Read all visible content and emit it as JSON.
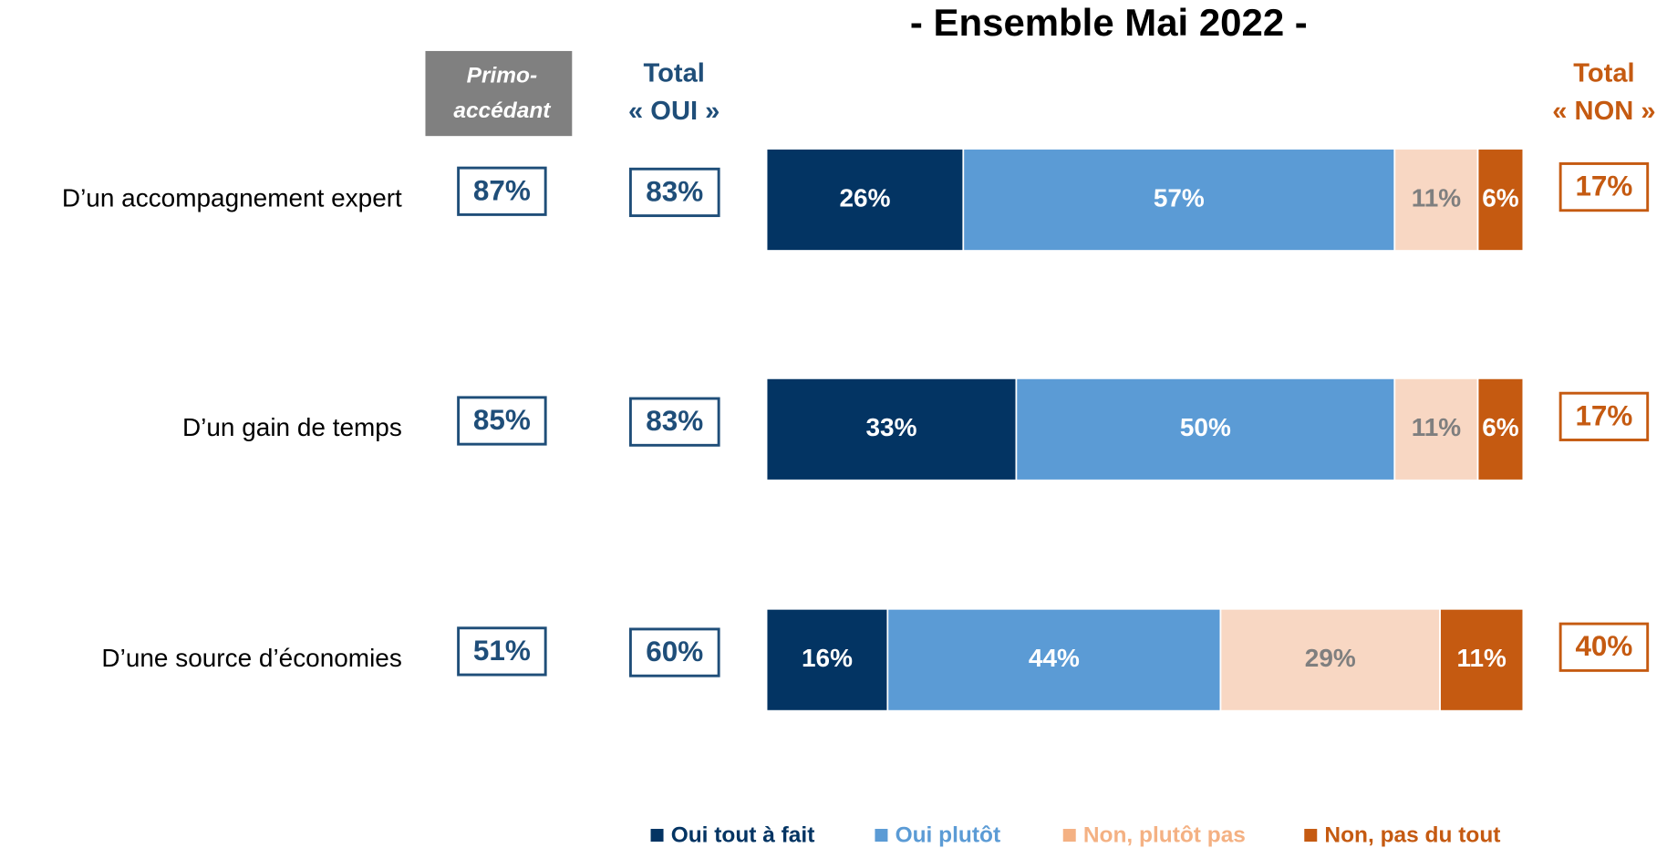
{
  "chart_data": {
    "type": "stacked_bar",
    "title": "- Ensemble Mai 2022 -",
    "categories": [
      "D’un accompagnement expert",
      "D’un gain de temps",
      "D’une source d’économies"
    ],
    "xlim": [
      0,
      100
    ],
    "series": [
      {
        "name": "Oui tout à fait",
        "color": "#033463",
        "label_color": "#ffffff",
        "legend_color": "#033463",
        "values": [
          26,
          33,
          16
        ],
        "value_labels": [
          "26%",
          "33%",
          "16%"
        ]
      },
      {
        "name": "Oui plutôt",
        "color": "#5b9bd5",
        "label_color": "#ffffff",
        "legend_color": "#5b9bd5",
        "values": [
          57,
          50,
          44
        ],
        "value_labels": [
          "57%",
          "50%",
          "44%"
        ]
      },
      {
        "name": "Non, plutôt pas",
        "color": "#f8d7c3",
        "label_color": "#7f7f7f",
        "legend_color": "#f4b183",
        "values": [
          11,
          11,
          29
        ],
        "value_labels": [
          "11%",
          "11%",
          "29%"
        ]
      },
      {
        "name": "Non, pas du tout",
        "color": "#c55a11",
        "label_color": "#ffffff",
        "legend_color": "#c55a11",
        "values": [
          6,
          6,
          11
        ],
        "value_labels": [
          "6%",
          "6%",
          "11%"
        ]
      }
    ],
    "columns": [
      {
        "header": [
          "Primo-",
          "accédant"
        ],
        "color": "#1f4e79",
        "values": [
          87,
          85,
          51
        ],
        "value_labels": [
          "87%",
          "85%",
          "51%"
        ]
      },
      {
        "header": [
          "Total",
          "« OUI »"
        ],
        "color": "#1f4e79",
        "values": [
          83,
          83,
          60
        ],
        "value_labels": [
          "83%",
          "83%",
          "60%"
        ]
      },
      {
        "header": [
          "Total",
          "« NON »"
        ],
        "color": "#c55a11",
        "values": [
          17,
          17,
          40
        ],
        "value_labels": [
          "17%",
          "17%",
          "40%"
        ]
      }
    ]
  }
}
